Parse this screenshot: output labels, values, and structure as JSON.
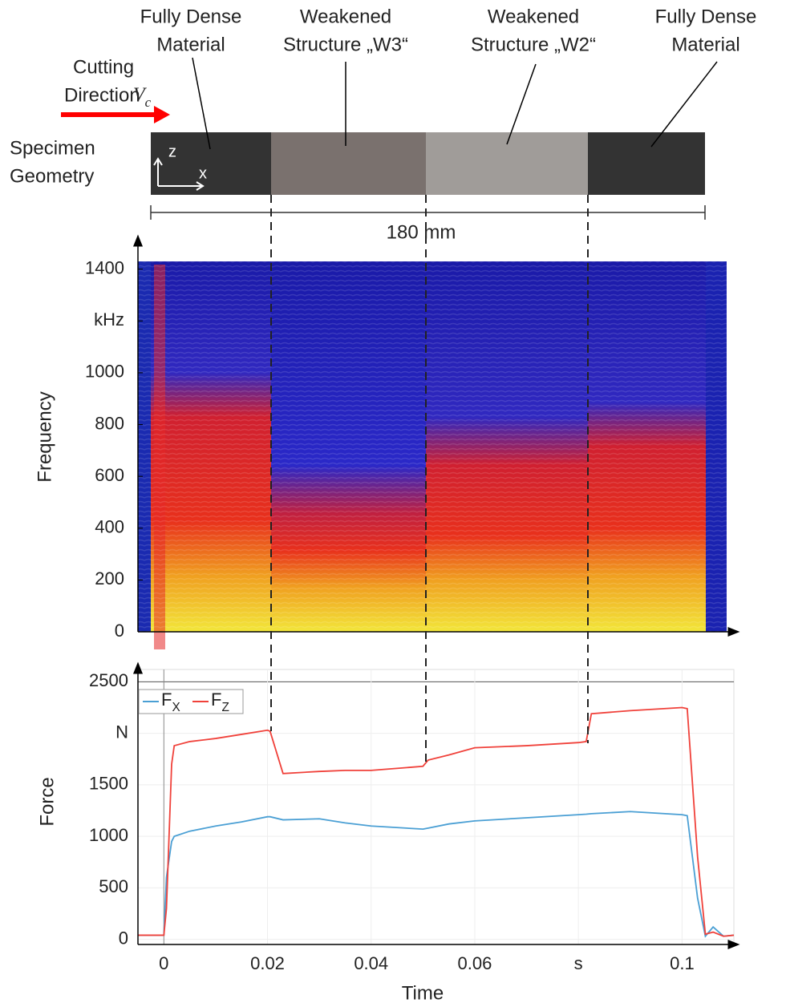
{
  "specimen": {
    "zones": [
      [
        "Fully Dense",
        "Material"
      ],
      [
        "Weakened",
        "Structure „W3“"
      ],
      [
        "Weakened",
        "Structure „W2“"
      ],
      [
        "Fully Dense",
        "Material"
      ]
    ],
    "cutting_direction": [
      "Cutting",
      "Direction"
    ],
    "velocity_symbol": "Vc",
    "row_label": [
      "Specimen",
      "Geometry"
    ],
    "axis_z": "z",
    "axis_x": "x",
    "dimension": "180 mm"
  },
  "chart_data": [
    {
      "type": "heatmap",
      "y_label": "Frequency",
      "ylim": [
        0,
        1430
      ],
      "yticks": [
        0,
        200,
        400,
        600,
        800,
        1000,
        {
          "value": 1200,
          "label": "kHz"
        },
        1400
      ]
    },
    {
      "type": "line",
      "x_label": "Time",
      "y_label": "Force",
      "xlim": [
        -0.005,
        0.11
      ],
      "xticks": [
        0,
        0.02,
        0.04,
        0.06,
        {
          "value": 0.08,
          "label": "s"
        },
        0.1
      ],
      "ylim": [
        -50,
        2620
      ],
      "yticks": [
        0,
        500,
        1000,
        1500,
        {
          "value": 2000,
          "label": "N"
        },
        2500
      ],
      "grid": true,
      "legend": "upper left",
      "x": [
        -0.005,
        0,
        0.0005,
        0.0015,
        0.002,
        0.005,
        0.01,
        0.015,
        0.02,
        0.0205,
        0.023,
        0.03,
        0.035,
        0.04,
        0.05,
        0.051,
        0.055,
        0.06,
        0.07,
        0.08,
        0.0815,
        0.0825,
        0.09,
        0.1,
        0.101,
        0.103,
        0.1045,
        0.106,
        0.108,
        0.11
      ],
      "series": [
        {
          "name": "FX",
          "color": "#4a9fd4",
          "values": [
            40,
            40,
            600,
            950,
            1000,
            1050,
            1100,
            1140,
            1190,
            1190,
            1160,
            1170,
            1130,
            1100,
            1070,
            1080,
            1120,
            1150,
            1180,
            1210,
            1215,
            1220,
            1240,
            1210,
            1200,
            400,
            30,
            120,
            30,
            40
          ]
        },
        {
          "name": "FZ",
          "color": "#f0413a",
          "values": [
            40,
            40,
            300,
            1700,
            1880,
            1920,
            1950,
            1990,
            2030,
            2020,
            1610,
            1630,
            1640,
            1640,
            1680,
            1740,
            1790,
            1860,
            1880,
            1910,
            1920,
            2190,
            2220,
            2250,
            2240,
            800,
            50,
            70,
            30,
            40
          ]
        }
      ]
    }
  ]
}
